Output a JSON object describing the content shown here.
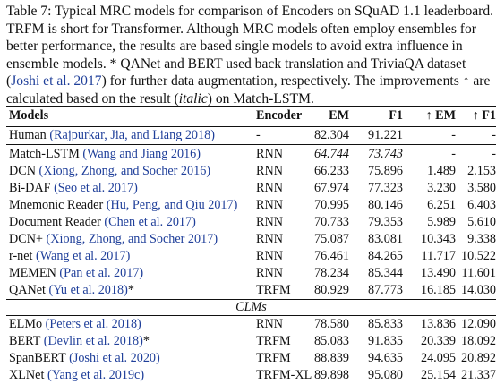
{
  "caption": [
    {
      "parts": [
        {
          "t": "Table 7: Typical MRC models for comparison of Encoders on SQuAD 1.1 leaderboard."
        }
      ]
    },
    {
      "parts": [
        {
          "t": "TRFM is short for Transformer. Although MRC models often employ ensembles for"
        }
      ]
    },
    {
      "parts": [
        {
          "t": "better performance, the results are based single models to avoid extra influence in"
        }
      ]
    },
    {
      "parts": [
        {
          "t": "ensemble models. * QANet and BERT used back translation and TriviaQA dataset"
        }
      ]
    },
    {
      "parts": [
        {
          "t": "(",
          "c": 0
        },
        {
          "t": "Joshi et al. 2017",
          "c": 1
        },
        {
          "t": ") for further data augmentation, respectively. The improvements ↑ are",
          "c": 0
        }
      ]
    },
    {
      "parts": [
        {
          "t": "calculated based on the result (",
          "c": 0
        },
        {
          "t": "italic",
          "i": 1
        },
        {
          "t": ") on Match-LSTM.",
          "c": 0
        }
      ]
    }
  ],
  "headers": {
    "model": "Models",
    "encoder": "Encoder",
    "em": "EM",
    "f1": "F1",
    "dem": "↑ EM",
    "df1": "↑ F1"
  },
  "section_label": "CLMs",
  "rows_a": [
    {
      "name": "Human",
      "cite": "Rajpurkar, Jia, and Liang 2018",
      "star": "",
      "enc": "-",
      "em": "82.304",
      "f1": "91.221",
      "dem": "-",
      "df1": "-"
    }
  ],
  "rows_b": [
    {
      "name": "Match-LSTM",
      "cite": "Wang and Jiang 2016",
      "star": "",
      "enc": "RNN",
      "em": "64.744",
      "f1": "73.743",
      "dem": "-",
      "df1": "-",
      "italic": true
    },
    {
      "name": "DCN",
      "cite": "Xiong, Zhong, and Socher 2016",
      "star": "",
      "enc": "RNN",
      "em": "66.233",
      "f1": "75.896",
      "dem": "1.489",
      "df1": "2.153"
    },
    {
      "name": "Bi-DAF",
      "cite": "Seo et al. 2017",
      "star": "",
      "enc": "RNN",
      "em": "67.974",
      "f1": "77.323",
      "dem": "3.230",
      "df1": "3.580"
    },
    {
      "name": "Mnemonic Reader",
      "cite": "Hu, Peng, and Qiu 2017",
      "star": "",
      "enc": "RNN",
      "em": "70.995",
      "f1": "80.146",
      "dem": "6.251",
      "df1": "6.403"
    },
    {
      "name": "Document Reader",
      "cite": "Chen et al. 2017",
      "star": "",
      "enc": "RNN",
      "em": "70.733",
      "f1": "79.353",
      "dem": "5.989",
      "df1": "5.610"
    },
    {
      "name": "DCN+",
      "cite": "Xiong, Zhong, and Socher 2017",
      "star": "",
      "enc": "RNN",
      "em": "75.087",
      "f1": "83.081",
      "dem": "10.343",
      "df1": "9.338"
    },
    {
      "name": "r-net",
      "cite": "Wang et al. 2017",
      "star": "",
      "enc": "RNN",
      "em": "76.461",
      "f1": "84.265",
      "dem": "11.717",
      "df1": "10.522"
    },
    {
      "name": "MEMEN",
      "cite": "Pan et al. 2017",
      "star": "",
      "enc": "RNN",
      "em": "78.234",
      "f1": "85.344",
      "dem": "13.490",
      "df1": "11.601"
    },
    {
      "name": "QANet",
      "cite": "Yu et al. 2018",
      "star": "*",
      "enc": "TRFM",
      "em": "80.929",
      "f1": "87.773",
      "dem": "16.185",
      "df1": "14.030"
    }
  ],
  "rows_c": [
    {
      "name": "ELMo",
      "cite": "Peters et al. 2018",
      "star": "",
      "enc": "RNN",
      "em": "78.580",
      "f1": "85.833",
      "dem": "13.836",
      "df1": "12.090"
    },
    {
      "name": "BERT",
      "cite": "Devlin et al. 2018",
      "star": "*",
      "enc": "TRFM",
      "em": "85.083",
      "f1": "91.835",
      "dem": "20.339",
      "df1": "18.092"
    },
    {
      "name": "SpanBERT",
      "cite": "Joshi et al. 2020",
      "star": "",
      "enc": "TRFM",
      "em": "88.839",
      "f1": "94.635",
      "dem": "24.095",
      "df1": "20.892"
    },
    {
      "name": "XLNet",
      "cite": "Yang et al. 2019c",
      "star": "",
      "enc": "TRFM-XL",
      "em": "89.898",
      "f1": "95.080",
      "dem": "25.154",
      "df1": "21.337"
    }
  ]
}
